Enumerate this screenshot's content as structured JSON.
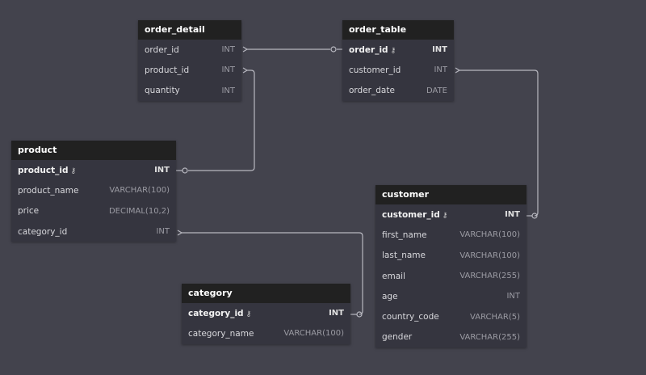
{
  "tables": {
    "order_detail": {
      "name": "order_detail",
      "columns": [
        {
          "name": "order_id",
          "type": "INT"
        },
        {
          "name": "product_id",
          "type": "INT"
        },
        {
          "name": "quantity",
          "type": "INT"
        }
      ]
    },
    "order_table": {
      "name": "order_table",
      "columns": [
        {
          "name": "order_id",
          "type": "INT",
          "pk": true
        },
        {
          "name": "customer_id",
          "type": "INT"
        },
        {
          "name": "order_date",
          "type": "DATE"
        }
      ]
    },
    "product": {
      "name": "product",
      "columns": [
        {
          "name": "product_id",
          "type": "INT",
          "pk": true
        },
        {
          "name": "product_name",
          "type": "VARCHAR(100)"
        },
        {
          "name": "price",
          "type": "DECIMAL(10,2)"
        },
        {
          "name": "category_id",
          "type": "INT"
        }
      ]
    },
    "customer": {
      "name": "customer",
      "columns": [
        {
          "name": "customer_id",
          "type": "INT",
          "pk": true
        },
        {
          "name": "first_name",
          "type": "VARCHAR(100)"
        },
        {
          "name": "last_name",
          "type": "VARCHAR(100)"
        },
        {
          "name": "email",
          "type": "VARCHAR(255)"
        },
        {
          "name": "age",
          "type": "INT"
        },
        {
          "name": "country_code",
          "type": "VARCHAR(5)"
        },
        {
          "name": "gender",
          "type": "VARCHAR(255)"
        }
      ]
    },
    "category": {
      "name": "category",
      "columns": [
        {
          "name": "category_id",
          "type": "INT",
          "pk": true
        },
        {
          "name": "category_name",
          "type": "VARCHAR(100)"
        }
      ]
    }
  },
  "relationships": [
    {
      "from": "order_detail.order_id",
      "to": "order_table.order_id",
      "type": "many-to-one"
    },
    {
      "from": "order_detail.product_id",
      "to": "product.product_id",
      "type": "many-to-one"
    },
    {
      "from": "order_table.customer_id",
      "to": "customer.customer_id",
      "type": "many-to-one"
    },
    {
      "from": "product.category_id",
      "to": "category.category_id",
      "type": "many-to-one"
    }
  ],
  "colors": {
    "background": "#43434d",
    "header": "#212121",
    "body": "#35353f",
    "connector": "#b8b8c0"
  }
}
